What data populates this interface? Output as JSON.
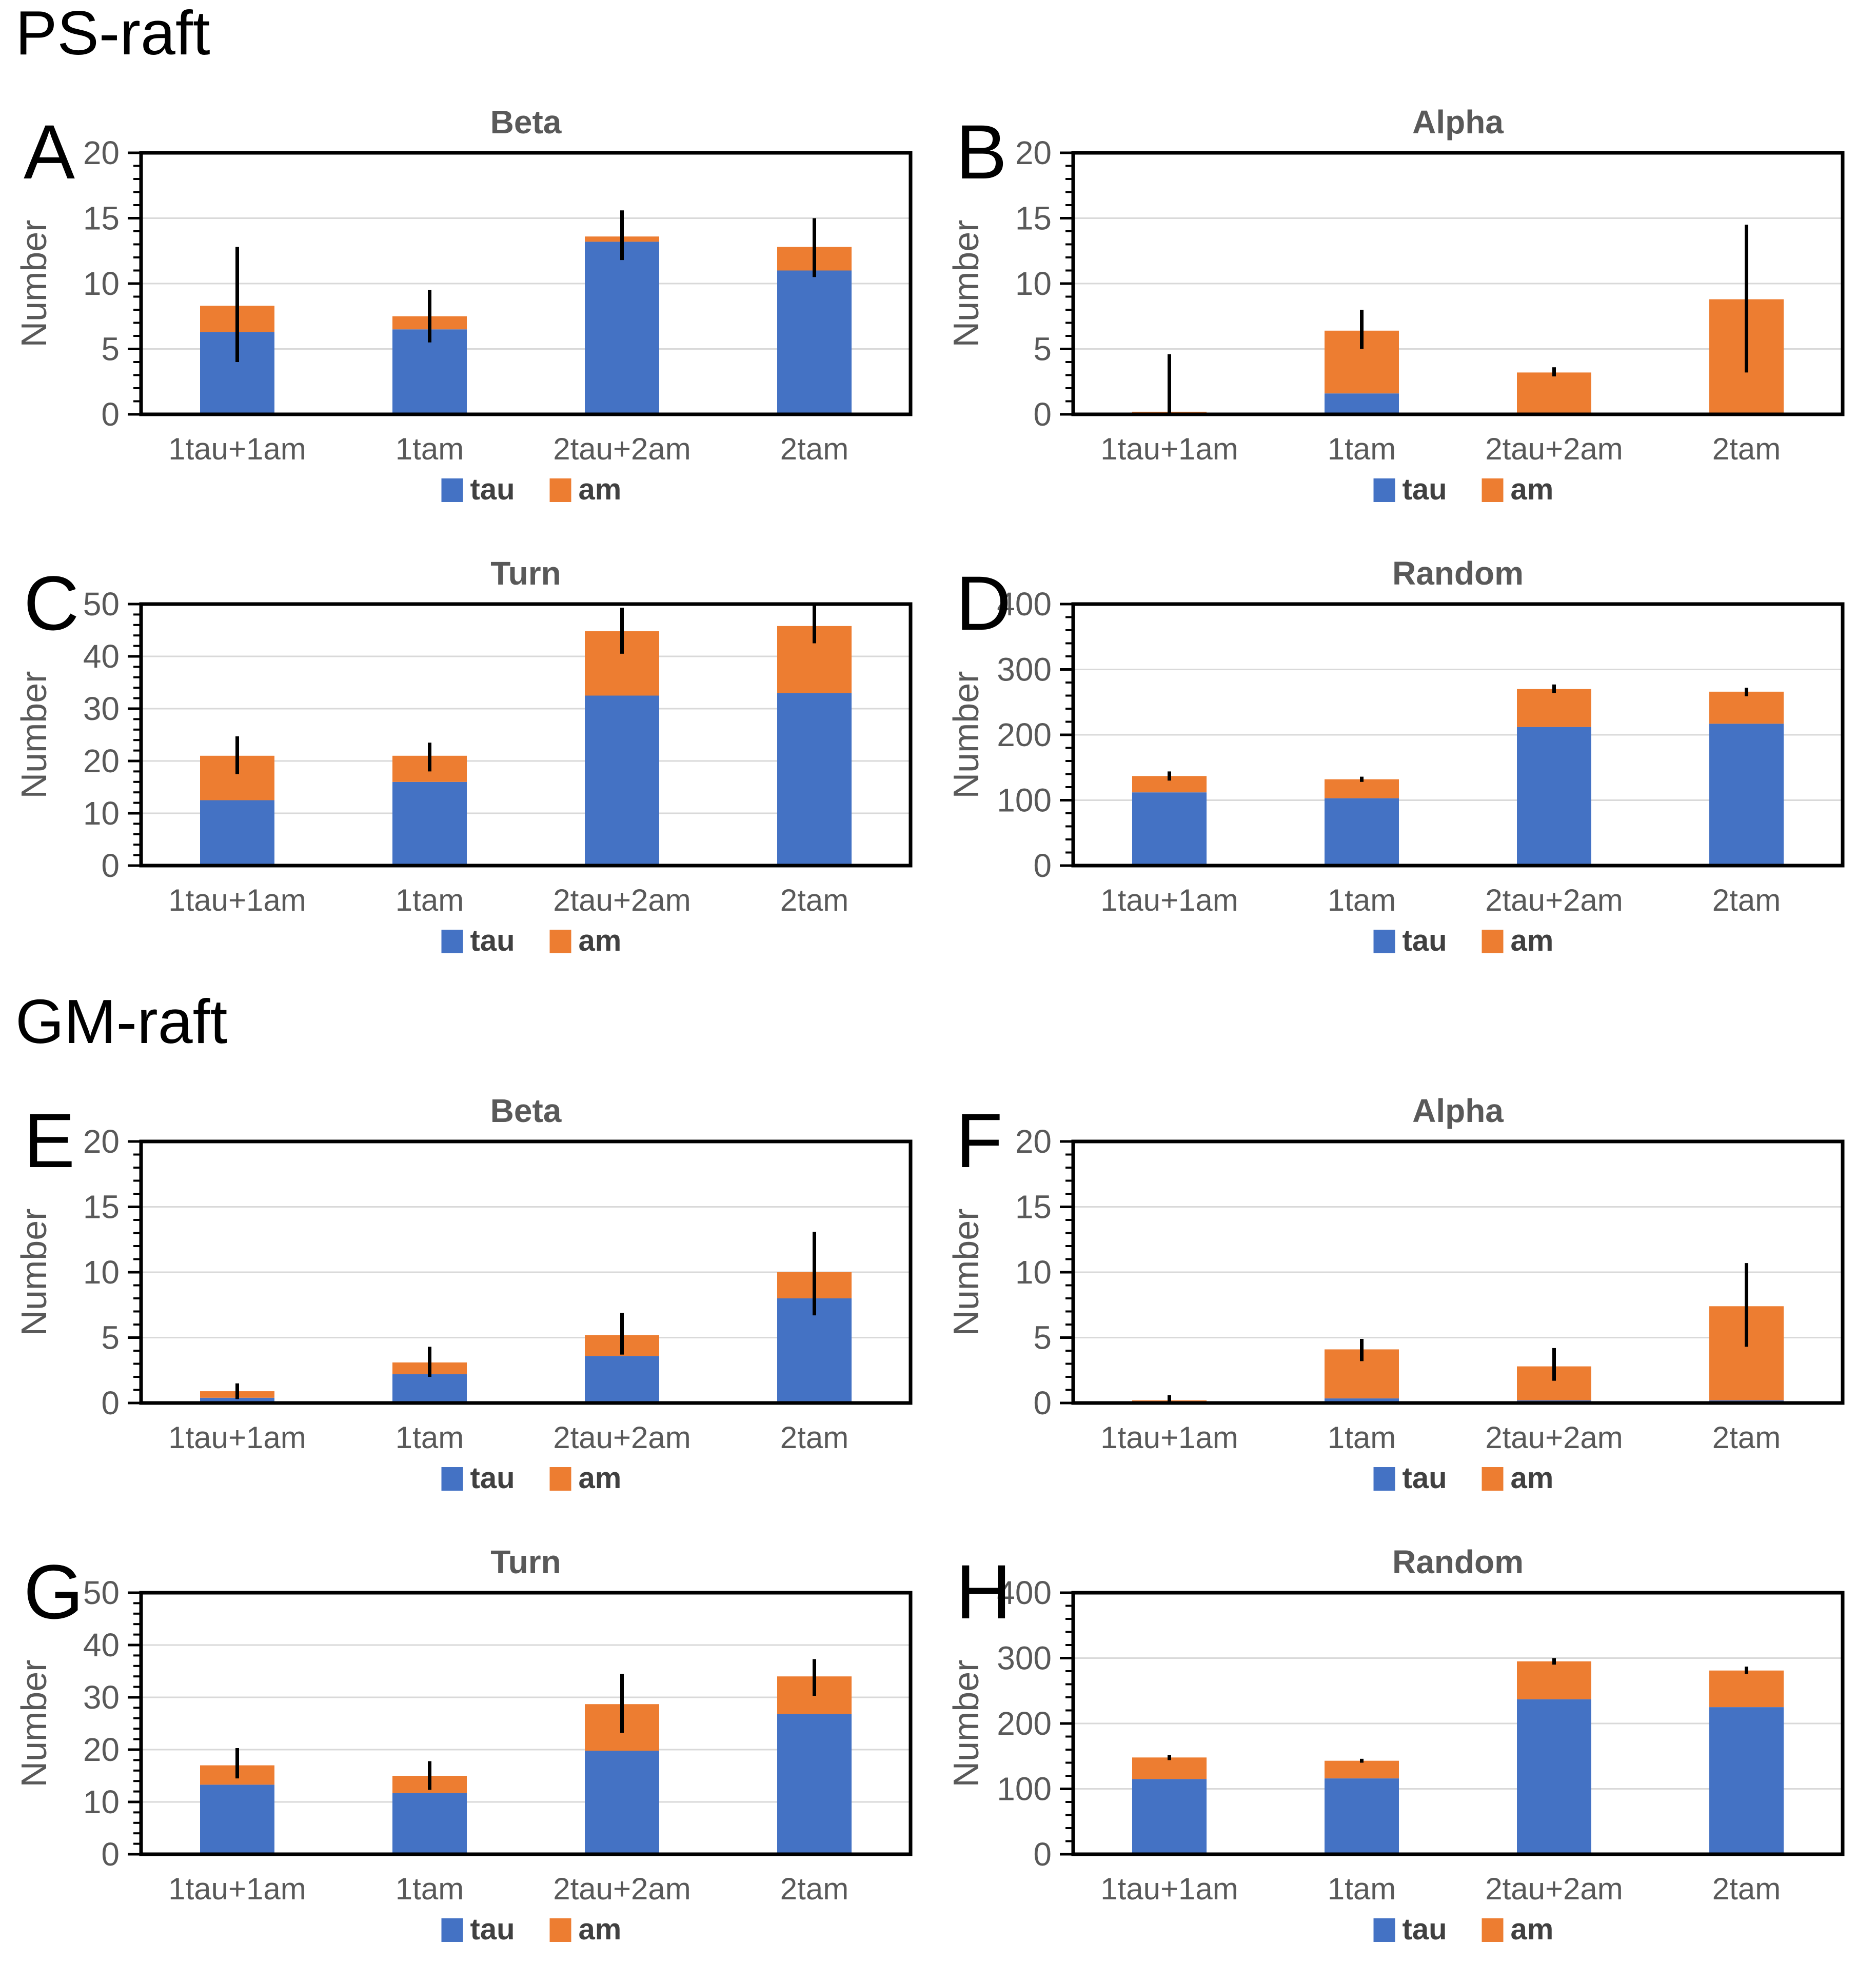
{
  "page": {
    "background": "#ffffff"
  },
  "sections": [
    {
      "label": "PS-raft"
    },
    {
      "label": "GM-raft"
    }
  ],
  "legend": {
    "items": [
      {
        "label": "tau",
        "color": "#4472C4"
      },
      {
        "label": "am",
        "color": "#ED7D31"
      }
    ]
  },
  "colors": {
    "tau_blue": "#4472C4",
    "am_orange": "#ED7D31",
    "title_gray": "#595959",
    "tick_gray": "#595959",
    "legend_text": "#404040",
    "gridline": "#D9D9D9",
    "axis_black": "#000000"
  },
  "chart_data": [
    {
      "panel": "A",
      "section": "PS-raft",
      "type": "bar",
      "stacked": true,
      "title": "Beta",
      "ylabel": "Number",
      "ylim": [
        0,
        20
      ],
      "yticks": [
        0,
        5,
        10,
        15,
        20
      ],
      "minor_step": 1,
      "grid": true,
      "categories": [
        "1tau+1am",
        "1tam",
        "2tau+2am",
        "2tam"
      ],
      "series": [
        {
          "name": "tau",
          "color": "#4472C4",
          "values": [
            6.3,
            6.5,
            13.2,
            11.0
          ]
        },
        {
          "name": "am",
          "color": "#ED7D31",
          "values": [
            2.0,
            1.0,
            0.4,
            1.8
          ]
        }
      ],
      "error_bars": {
        "low": [
          4.0,
          5.5,
          11.8,
          10.5
        ],
        "high": [
          12.8,
          9.5,
          15.6,
          15.0
        ]
      },
      "legend_position": "bottom"
    },
    {
      "panel": "B",
      "section": "PS-raft",
      "type": "bar",
      "stacked": true,
      "title": "Alpha",
      "ylabel": "Number",
      "ylim": [
        0,
        20
      ],
      "yticks": [
        0,
        5,
        10,
        15,
        20
      ],
      "minor_step": 1,
      "grid": true,
      "categories": [
        "1tau+1am",
        "1tam",
        "2tau+2am",
        "2tam"
      ],
      "series": [
        {
          "name": "tau",
          "color": "#4472C4",
          "values": [
            0,
            1.6,
            0,
            0
          ]
        },
        {
          "name": "am",
          "color": "#ED7D31",
          "values": [
            0.2,
            4.8,
            3.2,
            8.8
          ]
        }
      ],
      "error_bars": {
        "low": [
          0.1,
          5.0,
          2.9,
          3.2
        ],
        "high": [
          4.6,
          8.0,
          3.6,
          14.5
        ]
      },
      "legend_position": "bottom"
    },
    {
      "panel": "C",
      "section": "PS-raft",
      "type": "bar",
      "stacked": true,
      "title": "Turn",
      "ylabel": "Number",
      "ylim": [
        0,
        50
      ],
      "yticks": [
        0,
        10,
        20,
        30,
        40,
        50
      ],
      "minor_step": 2,
      "grid": true,
      "categories": [
        "1tau+1am",
        "1tam",
        "2tau+2am",
        "2tam"
      ],
      "series": [
        {
          "name": "tau",
          "color": "#4472C4",
          "values": [
            12.5,
            16.0,
            32.5,
            33.0
          ]
        },
        {
          "name": "am",
          "color": "#ED7D31",
          "values": [
            8.5,
            5.0,
            12.3,
            12.8
          ]
        }
      ],
      "error_bars": {
        "low": [
          17.5,
          18.0,
          40.5,
          42.5
        ],
        "high": [
          24.7,
          23.5,
          49.3,
          49.8
        ]
      },
      "legend_position": "bottom"
    },
    {
      "panel": "D",
      "section": "PS-raft",
      "type": "bar",
      "stacked": true,
      "title": "Random",
      "ylabel": "Number",
      "ylim": [
        0,
        400
      ],
      "yticks": [
        0,
        100,
        200,
        300,
        400
      ],
      "minor_step": 20,
      "grid": true,
      "categories": [
        "1tau+1am",
        "1tam",
        "2tau+2am",
        "2tam"
      ],
      "series": [
        {
          "name": "tau",
          "color": "#4472C4",
          "values": [
            112,
            103,
            212,
            217
          ]
        },
        {
          "name": "am",
          "color": "#ED7D31",
          "values": [
            25,
            29,
            58,
            49
          ]
        }
      ],
      "error_bars": {
        "low": [
          130,
          128,
          264,
          259
        ],
        "high": [
          144,
          136,
          277,
          272
        ]
      },
      "legend_position": "bottom"
    },
    {
      "panel": "E",
      "section": "GM-raft",
      "type": "bar",
      "stacked": true,
      "title": "Beta",
      "ylabel": "Number",
      "ylim": [
        0,
        20
      ],
      "yticks": [
        0,
        5,
        10,
        15,
        20
      ],
      "minor_step": 1,
      "grid": true,
      "categories": [
        "1tau+1am",
        "1tam",
        "2tau+2am",
        "2tam"
      ],
      "series": [
        {
          "name": "tau",
          "color": "#4472C4",
          "values": [
            0.4,
            2.2,
            3.6,
            8.0
          ]
        },
        {
          "name": "am",
          "color": "#ED7D31",
          "values": [
            0.5,
            0.9,
            1.6,
            2.0
          ]
        }
      ],
      "error_bars": {
        "low": [
          0.3,
          2.0,
          3.7,
          6.7
        ],
        "high": [
          1.5,
          4.3,
          6.9,
          13.1
        ]
      },
      "legend_position": "bottom"
    },
    {
      "panel": "F",
      "section": "GM-raft",
      "type": "bar",
      "stacked": true,
      "title": "Alpha",
      "ylabel": "Number",
      "ylim": [
        0,
        20
      ],
      "yticks": [
        0,
        5,
        10,
        15,
        20
      ],
      "minor_step": 1,
      "grid": true,
      "categories": [
        "1tau+1am",
        "1tam",
        "2tau+2am",
        "2tam"
      ],
      "series": [
        {
          "name": "tau",
          "color": "#4472C4",
          "values": [
            0.05,
            0.35,
            0.2,
            0.2
          ]
        },
        {
          "name": "am",
          "color": "#ED7D31",
          "values": [
            0.15,
            3.75,
            2.6,
            7.2
          ]
        }
      ],
      "error_bars": {
        "low": [
          0.1,
          3.2,
          1.7,
          4.3
        ],
        "high": [
          0.6,
          4.9,
          4.2,
          10.7
        ]
      },
      "legend_position": "bottom"
    },
    {
      "panel": "G",
      "section": "GM-raft",
      "type": "bar",
      "stacked": true,
      "title": "Turn",
      "ylabel": "Number",
      "ylim": [
        0,
        50
      ],
      "yticks": [
        0,
        10,
        20,
        30,
        40,
        50
      ],
      "minor_step": 2,
      "grid": true,
      "categories": [
        "1tau+1am",
        "1tam",
        "2tau+2am",
        "2tam"
      ],
      "series": [
        {
          "name": "tau",
          "color": "#4472C4",
          "values": [
            13.3,
            11.7,
            19.8,
            26.8
          ]
        },
        {
          "name": "am",
          "color": "#ED7D31",
          "values": [
            3.7,
            3.3,
            8.9,
            7.2
          ]
        }
      ],
      "error_bars": {
        "low": [
          14.5,
          12.3,
          23.2,
          30.3
        ],
        "high": [
          20.3,
          17.8,
          34.5,
          37.3
        ]
      },
      "legend_position": "bottom"
    },
    {
      "panel": "H",
      "section": "GM-raft",
      "type": "bar",
      "stacked": true,
      "title": "Random",
      "ylabel": "Number",
      "ylim": [
        0,
        400
      ],
      "yticks": [
        0,
        100,
        200,
        300,
        400
      ],
      "minor_step": 20,
      "grid": true,
      "categories": [
        "1tau+1am",
        "1tam",
        "2tau+2am",
        "2tam"
      ],
      "series": [
        {
          "name": "tau",
          "color": "#4472C4",
          "values": [
            115,
            116,
            237,
            225
          ]
        },
        {
          "name": "am",
          "color": "#ED7D31",
          "values": [
            33,
            27,
            58,
            56
          ]
        }
      ],
      "error_bars": {
        "low": [
          144,
          140,
          290,
          276
        ],
        "high": [
          152,
          146,
          300,
          287
        ]
      },
      "legend_position": "bottom"
    }
  ]
}
